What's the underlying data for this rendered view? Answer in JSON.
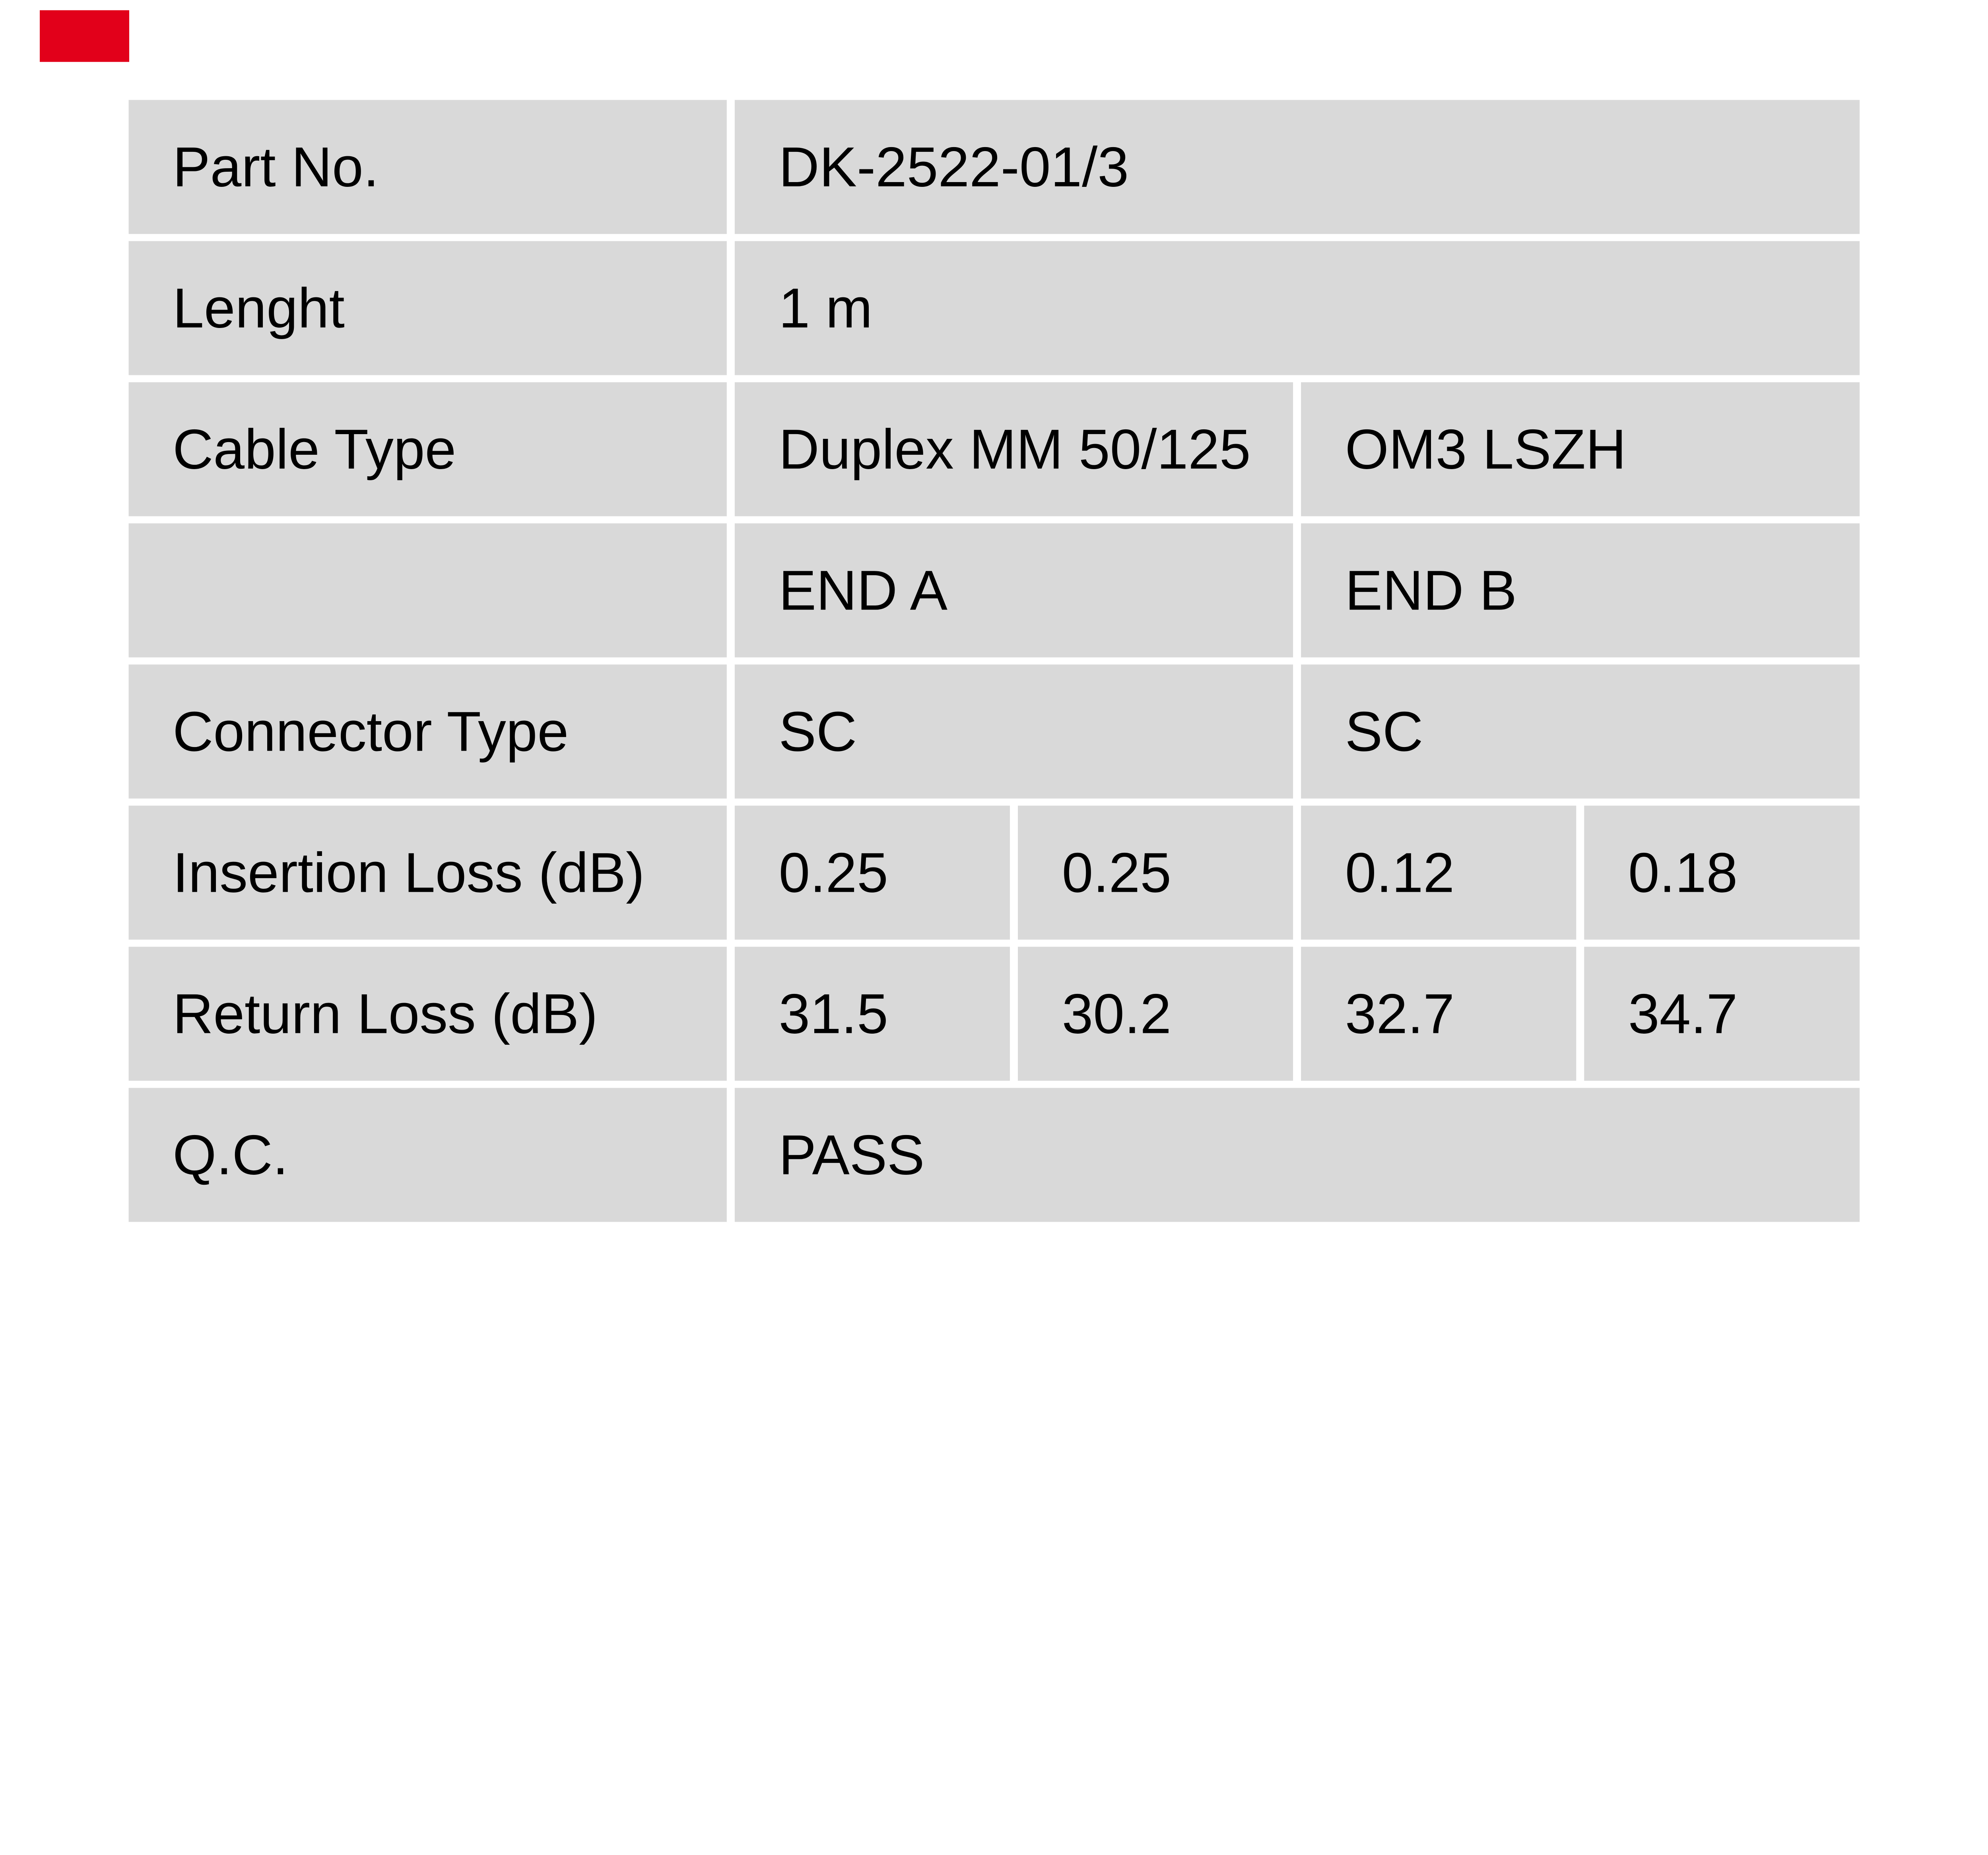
{
  "page": {
    "background": "#ffffff"
  },
  "brand_mark": {
    "color": "#e2001a"
  },
  "table": {
    "cell_bg": "#d9d9d9",
    "text_color": "#000000",
    "rows": [
      {
        "label": "Part No.",
        "values": [
          {
            "text": "DK-2522-01/3"
          }
        ]
      },
      {
        "label": "Lenght",
        "values": [
          {
            "text": "1 m"
          }
        ]
      },
      {
        "label": "Cable Type",
        "values": [
          {
            "text": "Duplex MM 50/125"
          },
          {
            "text": "OM3 LSZH"
          }
        ]
      },
      {
        "label": "",
        "values": [
          {
            "text": "END A"
          },
          {
            "text": "END B"
          }
        ]
      },
      {
        "label": "Connector Type",
        "values": [
          {
            "text": "SC"
          },
          {
            "text": "SC"
          }
        ]
      },
      {
        "label": "Insertion Loss (dB)",
        "values": [
          {
            "text": "0.25"
          },
          {
            "text": "0.25"
          },
          {
            "text": "0.12"
          },
          {
            "text": "0.18"
          }
        ]
      },
      {
        "label": "Return Loss (dB)",
        "values": [
          {
            "text": "31.5"
          },
          {
            "text": "30.2"
          },
          {
            "text": "32.7"
          },
          {
            "text": "34.7"
          }
        ]
      },
      {
        "label": "Q.C.",
        "values": [
          {
            "text": "PASS"
          }
        ]
      }
    ]
  }
}
